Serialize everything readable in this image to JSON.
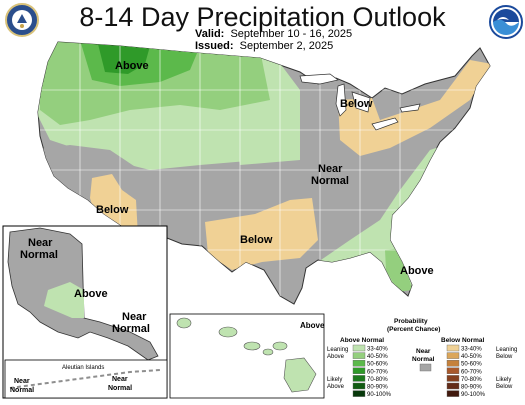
{
  "title": "8-14 Day Precipitation Outlook",
  "valid_label": "Valid:",
  "valid_value": "September 10 - 16, 2025",
  "issued_label": "Issued:",
  "issued_value": "September 2, 2025",
  "logos": {
    "left": "doc-seal-icon",
    "right": "noaa-logo-icon"
  },
  "colors": {
    "above_33_40": "#bfe3b0",
    "above_40_50": "#94cf7e",
    "above_50_60": "#5cb94b",
    "above_60_70": "#2f9a29",
    "above_70_80": "#1d7a1d",
    "above_80_90": "#115b12",
    "above_90_100": "#07380a",
    "near_normal": "#a6a6a6",
    "below_33_40": "#f0d195",
    "below_40_50": "#dba65a",
    "below_50_60": "#c5813c",
    "below_60_70": "#a9592c",
    "below_70_80": "#85401f",
    "below_80_90": "#632c18",
    "below_90_100": "#41190d",
    "state_lines": "#ffffff",
    "coast": "#333333"
  },
  "map_labels": {
    "above_nw": "Above",
    "below_mi": "Below",
    "near_normal_1": "Near",
    "near_normal_2": "Normal",
    "below_sw": "Below",
    "below_tx": "Below",
    "above_fl": "Above",
    "ak_near_1": "Near",
    "ak_near_2": "Normal",
    "ak_above": "Above",
    "ak_se_near_1": "Near",
    "ak_se_near_2": "Normal",
    "aleutian_title": "Aleutian Islands",
    "aleut_near_1_a": "Near",
    "aleut_near_1_b": "Normal",
    "aleut_near_2_a": "Near",
    "aleut_near_2_b": "Normal",
    "hawaii_above": "Above"
  },
  "legend": {
    "title_1": "Probability",
    "title_2": "(Percent Chance)",
    "above_header": "Above Normal",
    "near_header_1": "Near",
    "near_header_2": "Normal",
    "below_header": "Below Normal",
    "above_bins": [
      "33-40%",
      "40-50%",
      "50-60%",
      "60-70%",
      "70-80%",
      "80-90%",
      "90-100%"
    ],
    "below_bins": [
      "33-40%",
      "40-50%",
      "50-60%",
      "60-70%",
      "70-80%",
      "80-90%",
      "90-100%"
    ],
    "leaning_above_1": "Leaning",
    "leaning_above_2": "Above",
    "likely_above_1": "Likely",
    "likely_above_2": "Above",
    "leaning_below_1": "Leaning",
    "leaning_below_2": "Below",
    "likely_below_1": "Likely",
    "likely_below_2": "Below"
  }
}
